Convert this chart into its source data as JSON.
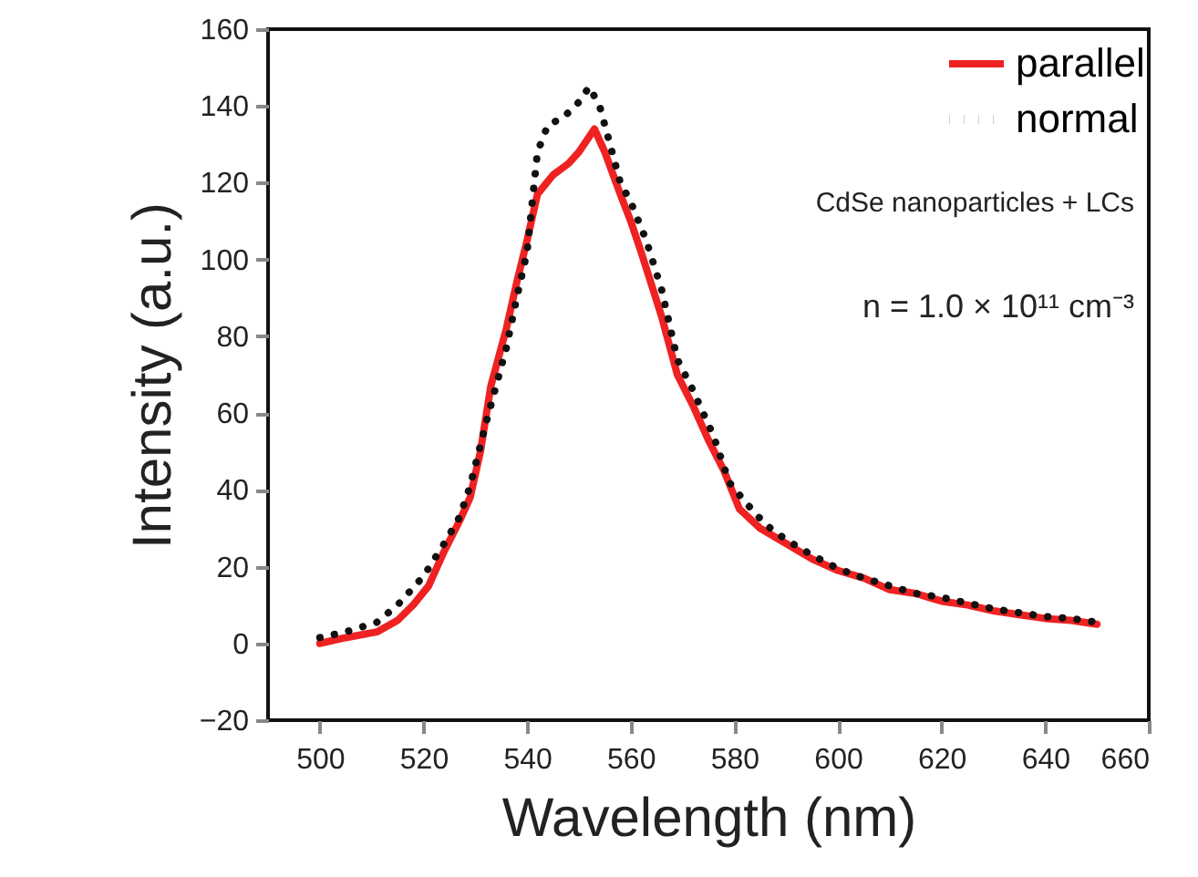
{
  "chart_data": {
    "type": "line",
    "xlabel": "Wavelength (nm)",
    "ylabel": "Intensity (a.u.)",
    "xlim": [
      490,
      660
    ],
    "xticks": [
      500,
      520,
      540,
      560,
      580,
      600,
      620,
      640,
      660
    ],
    "ylim": [
      -20,
      160
    ],
    "yticks": [
      -20,
      0,
      20,
      40,
      60,
      80,
      100,
      120,
      140,
      160
    ],
    "grid": false,
    "legend": "top right",
    "annotations": [
      "CdSe nanoparticles + LCs",
      "n = 1.0 × 10¹¹ cm⁻³"
    ],
    "series": [
      {
        "name": "parallel",
        "color": "#ee2222",
        "line_style": "solid",
        "x": [
          500,
          505,
          511,
          515,
          518,
          521,
          524,
          527,
          529,
          531,
          533,
          536,
          538,
          540,
          542,
          545,
          548,
          550,
          553,
          555,
          558,
          560,
          562,
          566,
          569,
          572,
          575,
          578,
          581,
          585,
          590,
          595,
          600,
          605,
          610,
          615,
          620,
          625,
          630,
          635,
          640,
          645,
          650
        ],
        "values": [
          0,
          1.5,
          3,
          6,
          10,
          15,
          24,
          32,
          38,
          50,
          67,
          82,
          94,
          105,
          117,
          122,
          125,
          128,
          134,
          128,
          117,
          110,
          102,
          85,
          70,
          62,
          53,
          45,
          35,
          30,
          26,
          22,
          19,
          17,
          14,
          13,
          11,
          10,
          8.5,
          7.5,
          6.5,
          6,
          5
        ]
      },
      {
        "name": "normal",
        "color": "#111111",
        "line_style": "dotted",
        "x": [
          500,
          505,
          511,
          515,
          520,
          524,
          527,
          529,
          532,
          536,
          538,
          540,
          542,
          544,
          547,
          550,
          552,
          554,
          556,
          558,
          560,
          563,
          566,
          569,
          572,
          576,
          579,
          582,
          586,
          590,
          595,
          600,
          605,
          610,
          615,
          620,
          625,
          630,
          635,
          640,
          645,
          650
        ],
        "values": [
          1.5,
          3,
          5.5,
          10,
          17.5,
          26,
          33,
          41,
          57,
          77,
          90,
          102,
          128,
          135,
          137,
          141,
          145,
          140,
          130,
          120,
          115,
          105,
          92,
          74,
          66,
          54,
          42,
          37,
          31,
          27,
          23,
          19.5,
          17,
          15,
          13,
          12,
          10.5,
          9,
          8,
          7,
          6.5,
          5.5
        ]
      }
    ]
  }
}
